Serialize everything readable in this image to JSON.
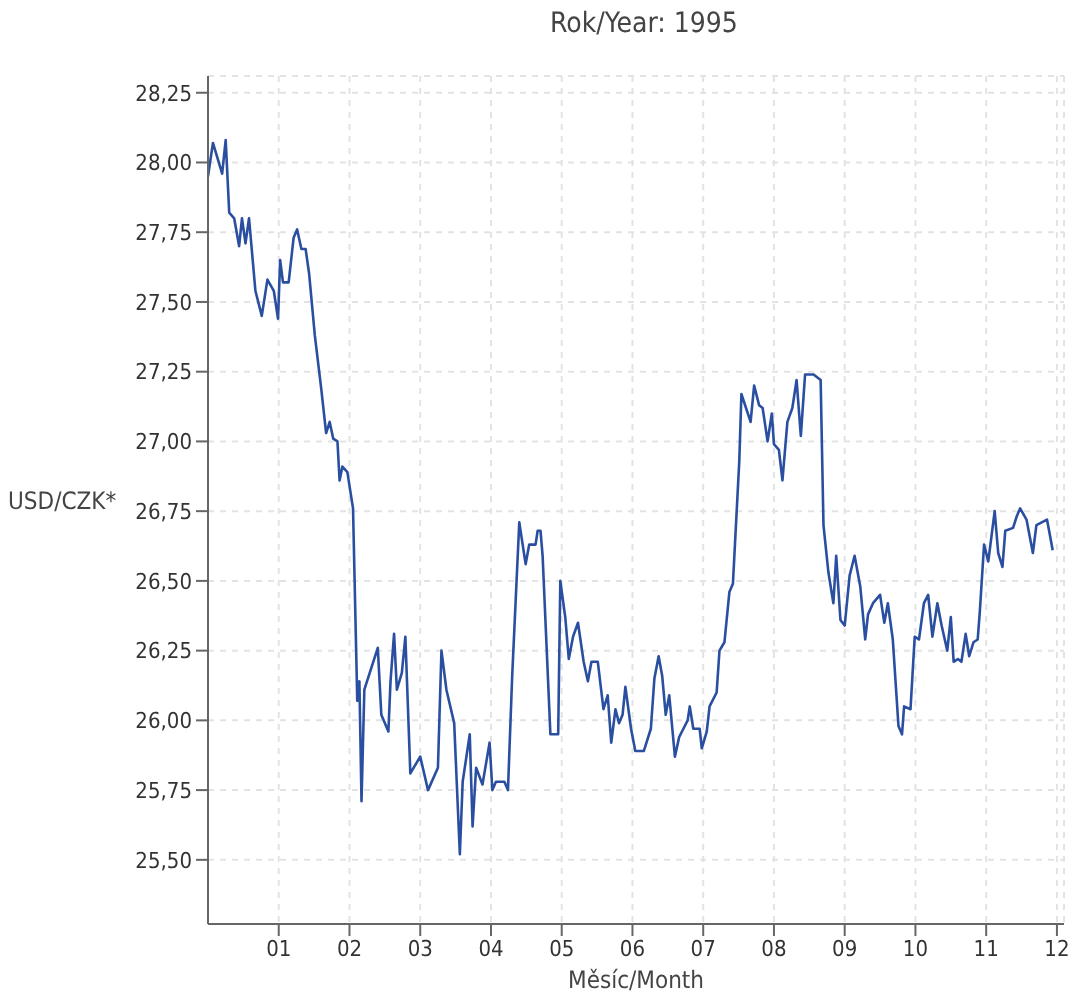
{
  "chart_data": {
    "type": "line",
    "title": "Rok/Year: 1995",
    "xlabel": "Měsíc/Month",
    "ylabel": "USD/CZK*",
    "x": [
      0.0,
      0.07,
      0.2,
      0.25,
      0.3,
      0.37,
      0.44,
      0.48,
      0.53,
      0.58,
      0.67,
      0.76,
      0.84,
      0.93,
      0.99,
      1.02,
      1.06,
      1.14,
      1.21,
      1.26,
      1.32,
      1.38,
      1.43,
      1.51,
      1.6,
      1.67,
      1.72,
      1.77,
      1.83,
      1.86,
      1.9,
      1.97,
      2.05,
      2.11,
      2.14,
      2.17,
      2.21,
      2.4,
      2.45,
      2.55,
      2.58,
      2.63,
      2.67,
      2.74,
      2.79,
      2.86,
      3.0,
      3.11,
      3.25,
      3.3,
      3.37,
      3.48,
      3.56,
      3.6,
      3.7,
      3.74,
      3.79,
      3.88,
      3.98,
      4.02,
      4.07,
      4.19,
      4.24,
      4.3,
      4.4,
      4.49,
      4.54,
      4.63,
      4.66,
      4.7,
      4.73,
      4.84,
      4.95,
      4.98,
      5.05,
      5.1,
      5.16,
      5.23,
      5.31,
      5.37,
      5.42,
      5.51,
      5.59,
      5.65,
      5.7,
      5.76,
      5.81,
      5.86,
      5.9,
      5.98,
      6.04,
      6.16,
      6.26,
      6.31,
      6.37,
      6.42,
      6.47,
      6.52,
      6.6,
      6.66,
      6.72,
      6.78,
      6.81,
      6.86,
      6.95,
      6.98,
      7.05,
      7.09,
      7.19,
      7.23,
      7.3,
      7.37,
      7.42,
      7.51,
      7.54,
      7.67,
      7.72,
      7.79,
      7.84,
      7.91,
      7.97,
      8.0,
      8.07,
      8.12,
      8.19,
      8.26,
      8.32,
      8.38,
      8.44,
      8.56,
      8.66,
      8.7,
      8.77,
      8.84,
      8.88,
      8.94,
      9.0,
      9.07,
      9.14,
      9.22,
      9.29,
      9.33,
      9.4,
      9.5,
      9.56,
      9.61,
      9.68,
      9.76,
      9.81,
      9.84,
      9.93,
      9.99,
      10.05,
      10.12,
      10.18,
      10.24,
      10.31,
      10.37,
      10.45,
      10.5,
      10.54,
      10.6,
      10.65,
      10.71,
      10.76,
      10.82,
      10.88,
      10.91,
      10.97,
      11.03,
      11.12,
      11.17,
      11.23,
      11.27,
      11.38,
      11.43,
      11.48,
      11.57,
      11.66,
      11.71,
      11.86,
      11.94
    ],
    "series": [
      {
        "color": "#2b4fa0",
        "values": [
          27.95,
          28.07,
          27.96,
          28.08,
          27.82,
          27.8,
          27.7,
          27.8,
          27.71,
          27.8,
          27.54,
          27.45,
          27.58,
          27.54,
          27.44,
          27.65,
          27.57,
          27.57,
          27.73,
          27.76,
          27.69,
          27.69,
          27.6,
          27.38,
          27.19,
          27.03,
          27.07,
          27.01,
          27.0,
          26.86,
          26.91,
          26.89,
          26.76,
          26.07,
          26.14,
          25.71,
          26.11,
          26.26,
          26.02,
          25.96,
          26.14,
          26.31,
          26.11,
          26.17,
          26.3,
          25.81,
          25.87,
          25.75,
          25.83,
          26.25,
          26.11,
          25.99,
          25.52,
          25.78,
          25.95,
          25.62,
          25.83,
          25.77,
          25.92,
          25.75,
          25.78,
          25.78,
          25.75,
          26.16,
          26.71,
          26.56,
          26.63,
          26.63,
          26.68,
          26.68,
          26.59,
          25.95,
          25.95,
          26.5,
          26.37,
          26.22,
          26.3,
          26.35,
          26.21,
          26.14,
          26.21,
          26.21,
          26.04,
          26.09,
          25.92,
          26.04,
          25.99,
          26.02,
          26.12,
          25.97,
          25.89,
          25.89,
          25.97,
          26.15,
          26.23,
          26.16,
          26.02,
          26.09,
          25.87,
          25.94,
          25.97,
          26.0,
          26.05,
          25.97,
          25.97,
          25.9,
          25.96,
          26.05,
          26.1,
          26.25,
          26.28,
          26.46,
          26.49,
          26.93,
          27.17,
          27.07,
          27.2,
          27.13,
          27.12,
          27.0,
          27.1,
          26.99,
          26.97,
          26.86,
          27.07,
          27.12,
          27.22,
          27.02,
          27.24,
          27.24,
          27.22,
          26.7,
          26.53,
          26.42,
          26.59,
          26.36,
          26.34,
          26.52,
          26.59,
          26.48,
          26.29,
          26.38,
          26.42,
          26.45,
          26.35,
          26.42,
          26.29,
          25.98,
          25.95,
          26.05,
          26.04,
          26.3,
          26.29,
          26.42,
          26.45,
          26.3,
          26.42,
          26.34,
          26.25,
          26.37,
          26.21,
          26.22,
          26.21,
          26.31,
          26.23,
          26.28,
          26.29,
          26.39,
          26.63,
          26.57,
          26.75,
          26.6,
          26.55,
          26.68,
          26.69,
          26.73,
          26.76,
          26.72,
          26.6,
          26.7,
          26.72,
          26.61
        ]
      }
    ],
    "xlim": [
      0,
      12.1
    ],
    "xticks": [
      {
        "value": 1,
        "label": "01"
      },
      {
        "value": 2,
        "label": "02"
      },
      {
        "value": 3,
        "label": "03"
      },
      {
        "value": 4,
        "label": "04"
      },
      {
        "value": 5,
        "label": "05"
      },
      {
        "value": 6,
        "label": "06"
      },
      {
        "value": 7,
        "label": "07"
      },
      {
        "value": 8,
        "label": "08"
      },
      {
        "value": 9,
        "label": "09"
      },
      {
        "value": 10,
        "label": "10"
      },
      {
        "value": 11,
        "label": "11"
      },
      {
        "value": 12,
        "label": "12"
      }
    ],
    "ylim": [
      25.27,
      28.31
    ],
    "yticks": [
      {
        "value": 25.5,
        "label": "25,50"
      },
      {
        "value": 25.75,
        "label": "25,75"
      },
      {
        "value": 26,
        "label": "26,00"
      },
      {
        "value": 26.25,
        "label": "26,25"
      },
      {
        "value": 26.5,
        "label": "26,50"
      },
      {
        "value": 26.75,
        "label": "26,75"
      },
      {
        "value": 27,
        "label": "27,00"
      },
      {
        "value": 27.25,
        "label": "27,25"
      },
      {
        "value": 27.5,
        "label": "27,50"
      },
      {
        "value": 27.75,
        "label": "27,75"
      },
      {
        "value": 28,
        "label": "28,00"
      },
      {
        "value": 28.25,
        "label": "28,25"
      }
    ],
    "grid": true,
    "legend": false,
    "marker": "none",
    "line_style": "solid"
  }
}
